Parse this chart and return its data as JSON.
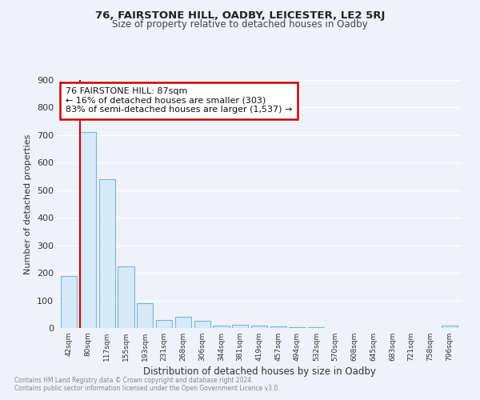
{
  "title": "76, FAIRSTONE HILL, OADBY, LEICESTER, LE2 5RJ",
  "subtitle": "Size of property relative to detached houses in Oadby",
  "xlabel": "Distribution of detached houses by size in Oadby",
  "ylabel": "Number of detached properties",
  "bar_labels": [
    "42sqm",
    "80sqm",
    "117sqm",
    "155sqm",
    "193sqm",
    "231sqm",
    "268sqm",
    "306sqm",
    "344sqm",
    "381sqm",
    "419sqm",
    "457sqm",
    "494sqm",
    "532sqm",
    "570sqm",
    "608sqm",
    "645sqm",
    "683sqm",
    "721sqm",
    "758sqm",
    "796sqm"
  ],
  "bar_values": [
    190,
    710,
    540,
    225,
    90,
    30,
    40,
    25,
    10,
    12,
    10,
    5,
    4,
    3,
    0,
    0,
    0,
    0,
    0,
    0,
    8
  ],
  "bar_fill_color": "#d6eaf8",
  "bar_edge_color": "#7fb3d3",
  "marker_line_color": "#cc0000",
  "annotation_text_line1": "76 FAIRSTONE HILL: 87sqm",
  "annotation_text_line2": "← 16% of detached houses are smaller (303)",
  "annotation_text_line3": "83% of semi-detached houses are larger (1,537) →",
  "ylim": [
    0,
    900
  ],
  "yticks": [
    0,
    100,
    200,
    300,
    400,
    500,
    600,
    700,
    800,
    900
  ],
  "footer_line1": "Contains HM Land Registry data © Crown copyright and database right 2024.",
  "footer_line2": "Contains public sector information licensed under the Open Government Licence v3.0.",
  "bg_color": "#eef2fb",
  "plot_bg_color": "#eef2fb",
  "grid_color": "#ffffff",
  "annotation_box_color": "#ffffff",
  "annotation_box_edge_color": "#cc0000"
}
